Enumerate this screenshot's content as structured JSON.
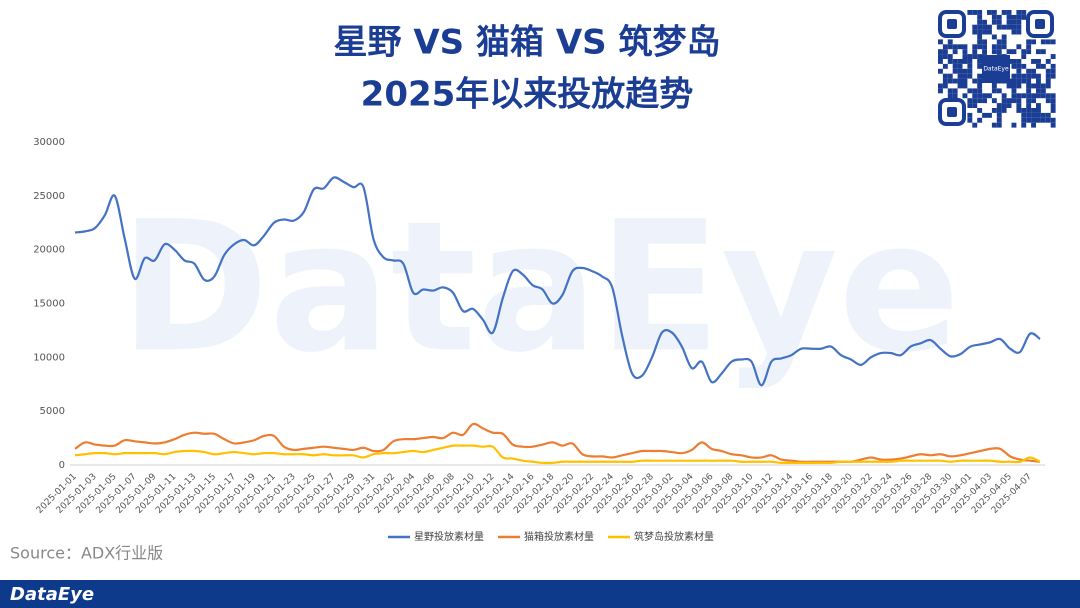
{
  "header": {
    "title_line1": "星野 VS 猫箱 VS 筑梦岛",
    "title_line2": "2025年以来投放趋势",
    "qr_text": "DataEye"
  },
  "watermark": "DataEye",
  "source": "Source：ADX行业版",
  "footer": "DataEye",
  "chart_data": {
    "type": "line",
    "categories": [
      "2025-01-01",
      null,
      "2025-01-03",
      null,
      "2025-01-05",
      null,
      "2025-01-07",
      null,
      "2025-01-09",
      null,
      "2025-01-11",
      null,
      "2025-01-13",
      null,
      "2025-01-15",
      null,
      "2025-01-17",
      null,
      "2025-01-19",
      null,
      "2025-01-21",
      null,
      "2025-01-23",
      null,
      "2025-01-25",
      null,
      "2025-01-27",
      null,
      "2025-01-29",
      null,
      "2025-01-31",
      null,
      "2025-02-02",
      null,
      "2025-02-04",
      null,
      "2025-02-06",
      null,
      "2025-02-08",
      null,
      "2025-02-10",
      null,
      "2025-02-12",
      null,
      "2025-02-14",
      null,
      "2025-02-16",
      null,
      "2025-02-18",
      null,
      "2025-02-20",
      null,
      "2025-02-22",
      null,
      "2025-02-24",
      null,
      "2025-02-26",
      null,
      "2025-02-28",
      null,
      "2025-03-02",
      null,
      "2025-03-04",
      null,
      "2025-03-06",
      null,
      "2025-03-08",
      null,
      "2025-03-10",
      null,
      "2025-03-12",
      null,
      "2025-03-14",
      null,
      "2025-03-16",
      null,
      "2025-03-18",
      null,
      "2025-03-20",
      null,
      "2025-03-22",
      null,
      "2025-03-24",
      null,
      "2025-03-26",
      null,
      "2025-03-28",
      null,
      "2025-03-30",
      null,
      "2025-04-01",
      null,
      "2025-04-03",
      null,
      "2025-04-05",
      null,
      "2025-04-07",
      null
    ],
    "series": [
      {
        "name": "星野投放素材量",
        "color": "#4472c4",
        "values": [
          21600,
          21700,
          22000,
          23200,
          25000,
          21000,
          17300,
          19200,
          19000,
          20500,
          20000,
          19000,
          18700,
          17200,
          17500,
          19500,
          20500,
          20900,
          20400,
          21300,
          22500,
          22800,
          22700,
          23500,
          25600,
          25700,
          26700,
          26300,
          25800,
          25800,
          21000,
          19300,
          19000,
          18700,
          16000,
          16300,
          16200,
          16500,
          16000,
          14300,
          14500,
          13500,
          12300,
          15500,
          18000,
          17700,
          16700,
          16300,
          15000,
          15800,
          18000,
          18300,
          18000,
          17500,
          16500,
          12000,
          8500,
          8300,
          10000,
          12300,
          12300,
          11000,
          9000,
          9600,
          7700,
          8500,
          9600,
          9800,
          9600,
          7400,
          9600,
          9900,
          10200,
          10800,
          10800,
          10800,
          11000,
          10200,
          9800,
          9300,
          10000,
          10400,
          10400,
          10200,
          11000,
          11300,
          11600,
          10800,
          10100,
          10300,
          11000,
          11200,
          11400,
          11700,
          10800,
          10500,
          12200,
          11700
        ]
      },
      {
        "name": "猫箱投放素材量",
        "color": "#ed7d31",
        "values": [
          1500,
          2100,
          1900,
          1800,
          1800,
          2300,
          2200,
          2100,
          2000,
          2100,
          2400,
          2800,
          3000,
          2900,
          2900,
          2400,
          2000,
          2100,
          2300,
          2700,
          2700,
          1700,
          1400,
          1500,
          1600,
          1700,
          1600,
          1500,
          1400,
          1600,
          1300,
          1400,
          2200,
          2400,
          2400,
          2500,
          2600,
          2500,
          3000,
          2800,
          3800,
          3400,
          3000,
          2900,
          1900,
          1700,
          1700,
          1900,
          2100,
          1800,
          2000,
          1000,
          800,
          800,
          700,
          900,
          1100,
          1300,
          1300,
          1300,
          1200,
          1100,
          1400,
          2100,
          1500,
          1300,
          1000,
          900,
          700,
          700,
          900,
          500,
          400,
          300,
          300,
          300,
          300,
          300,
          300,
          500,
          700,
          500,
          500,
          600,
          800,
          1000,
          900,
          1000,
          800,
          900,
          1100,
          1300,
          1500,
          1500,
          800,
          500,
          400,
          300
        ]
      },
      {
        "name": "筑梦岛投放素材量",
        "color": "#ffc000",
        "values": [
          900,
          1000,
          1100,
          1100,
          1000,
          1100,
          1100,
          1100,
          1100,
          1000,
          1200,
          1300,
          1300,
          1200,
          1000,
          1100,
          1200,
          1100,
          1000,
          1100,
          1100,
          1000,
          1000,
          1000,
          900,
          1000,
          900,
          900,
          900,
          700,
          1000,
          1100,
          1100,
          1200,
          1300,
          1200,
          1400,
          1600,
          1800,
          1800,
          1800,
          1700,
          1700,
          700,
          600,
          400,
          300,
          200,
          200,
          300,
          300,
          300,
          300,
          300,
          300,
          300,
          300,
          400,
          400,
          400,
          400,
          400,
          400,
          400,
          400,
          400,
          400,
          300,
          300,
          300,
          300,
          200,
          200,
          200,
          200,
          200,
          200,
          300,
          300,
          300,
          300,
          300,
          300,
          400,
          400,
          400,
          400,
          400,
          300,
          400,
          400,
          400,
          400,
          300,
          300,
          300,
          700,
          300
        ]
      }
    ],
    "ylim": [
      0,
      30000
    ],
    "yticks": [
      0,
      5000,
      10000,
      15000,
      20000,
      25000,
      30000
    ],
    "grid": false,
    "legend": "bottom"
  }
}
